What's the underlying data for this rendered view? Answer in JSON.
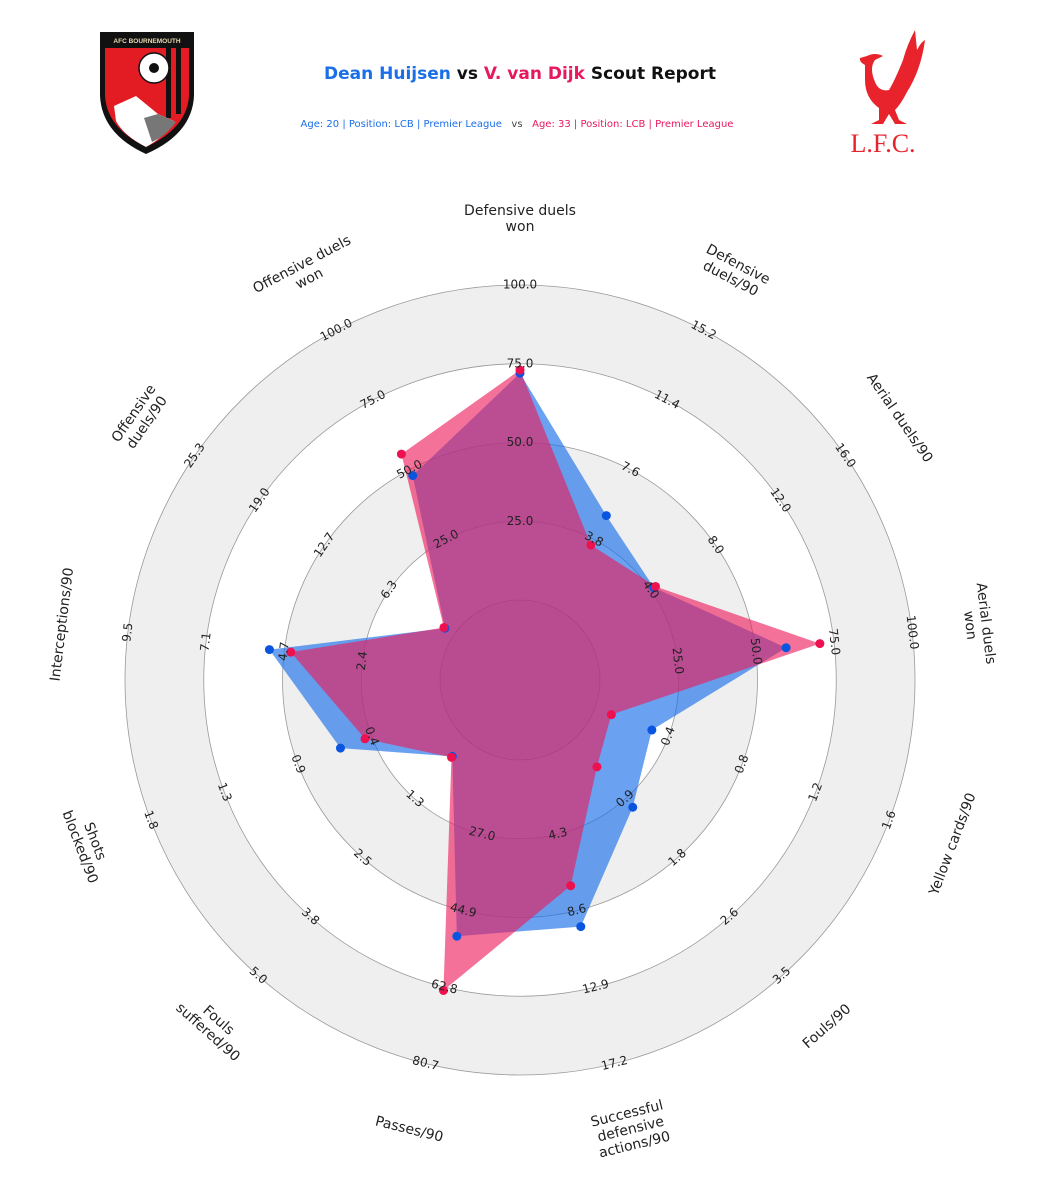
{
  "header": {
    "player1": "Dean Huijsen",
    "vs": "vs",
    "player2": "V. van Dijk",
    "suffix": "Scout Report",
    "player1_info": "Age: 20 | Position: LCB | Premier League",
    "info_vs": "vs",
    "player2_info": "Age: 33 | Position: LCB | Premier League"
  },
  "logos": {
    "left": "AFC BOURNEMOUTH",
    "right": "L.F.C."
  },
  "colors": {
    "player1": "#1a6fe8",
    "player2": "#ee1a5a",
    "band": "#efefef"
  },
  "chart_data": {
    "type": "radar",
    "title": "Dean Huijsen vs V. van Dijk Scout Report",
    "params": [
      {
        "label": [
          "Defensive duels",
          "won"
        ],
        "min": 0,
        "max": 100,
        "ticks": [
          "25.0",
          "50.0",
          "75.0",
          "100.0"
        ]
      },
      {
        "label": [
          "Defensive",
          "duels/90"
        ],
        "min": 0,
        "max": 15.2,
        "ticks": [
          "3.8",
          "7.6",
          "11.4",
          "15.2"
        ]
      },
      {
        "label": [
          "Aerial duels/90"
        ],
        "min": 0,
        "max": 16.0,
        "ticks": [
          "4.0",
          "8.0",
          "12.0",
          "16.0"
        ]
      },
      {
        "label": [
          "Aerial duels",
          "won"
        ],
        "min": 0,
        "max": 100,
        "ticks": [
          "25.0",
          "50.0",
          "75.0",
          "100.0"
        ]
      },
      {
        "label": [
          "Yellow cards/90"
        ],
        "min": 0,
        "max": 1.6,
        "ticks": [
          "0.4",
          "0.8",
          "1.2",
          "1.6"
        ]
      },
      {
        "label": [
          "Fouls/90"
        ],
        "min": 0,
        "max": 3.5,
        "ticks": [
          "0.9",
          "1.8",
          "2.6",
          "3.5"
        ]
      },
      {
        "label": [
          "Successful",
          "defensive",
          "actions/90"
        ],
        "min": 0,
        "max": 17.2,
        "ticks": [
          "4.3",
          "8.6",
          "12.9",
          "17.2"
        ]
      },
      {
        "label": [
          "Passes/90"
        ],
        "min": 9.1,
        "max": 80.7,
        "ticks": [
          "27.0",
          "44.9",
          "62.8",
          "80.7"
        ]
      },
      {
        "label": [
          "Fouls",
          "suffered/90"
        ],
        "min": 0,
        "max": 5.0,
        "ticks": [
          "1.3",
          "2.5",
          "3.8",
          "5.0"
        ]
      },
      {
        "label": [
          "Shots",
          "blocked/90"
        ],
        "min": 0,
        "max": 1.8,
        "ticks": [
          "0.4",
          "0.9",
          "1.3",
          "1.8"
        ]
      },
      {
        "label": [
          "Interceptions/90"
        ],
        "min": 0,
        "max": 9.5,
        "ticks": [
          "2.4",
          "4.7",
          "7.1",
          "9.5"
        ]
      },
      {
        "label": [
          "Offensive",
          "duels/90"
        ],
        "min": 0,
        "max": 25.3,
        "ticks": [
          "6.3",
          "12.7",
          "19.0",
          "25.3"
        ]
      },
      {
        "label": [
          "Offensive duels",
          "won"
        ],
        "min": 0,
        "max": 100,
        "ticks": [
          "25.0",
          "50.0",
          "75.0",
          "100.0"
        ]
      }
    ],
    "series": [
      {
        "name": "Dean Huijsen",
        "values": [
          72,
          5.1,
          4.2,
          59.7,
          0.31,
          1.0,
          9.5,
          50.9,
          0.35,
          0.64,
          5.2,
          0.9,
          47.9
        ]
      },
      {
        "name": "V. van Dijk",
        "values": [
          73,
          3.5,
          4.3,
          70.5,
          0.09,
          0.4,
          7.2,
          63.6,
          0.37,
          0.49,
          4.55,
          1.0,
          55.6
        ]
      }
    ],
    "grid": true,
    "legend": "title"
  }
}
